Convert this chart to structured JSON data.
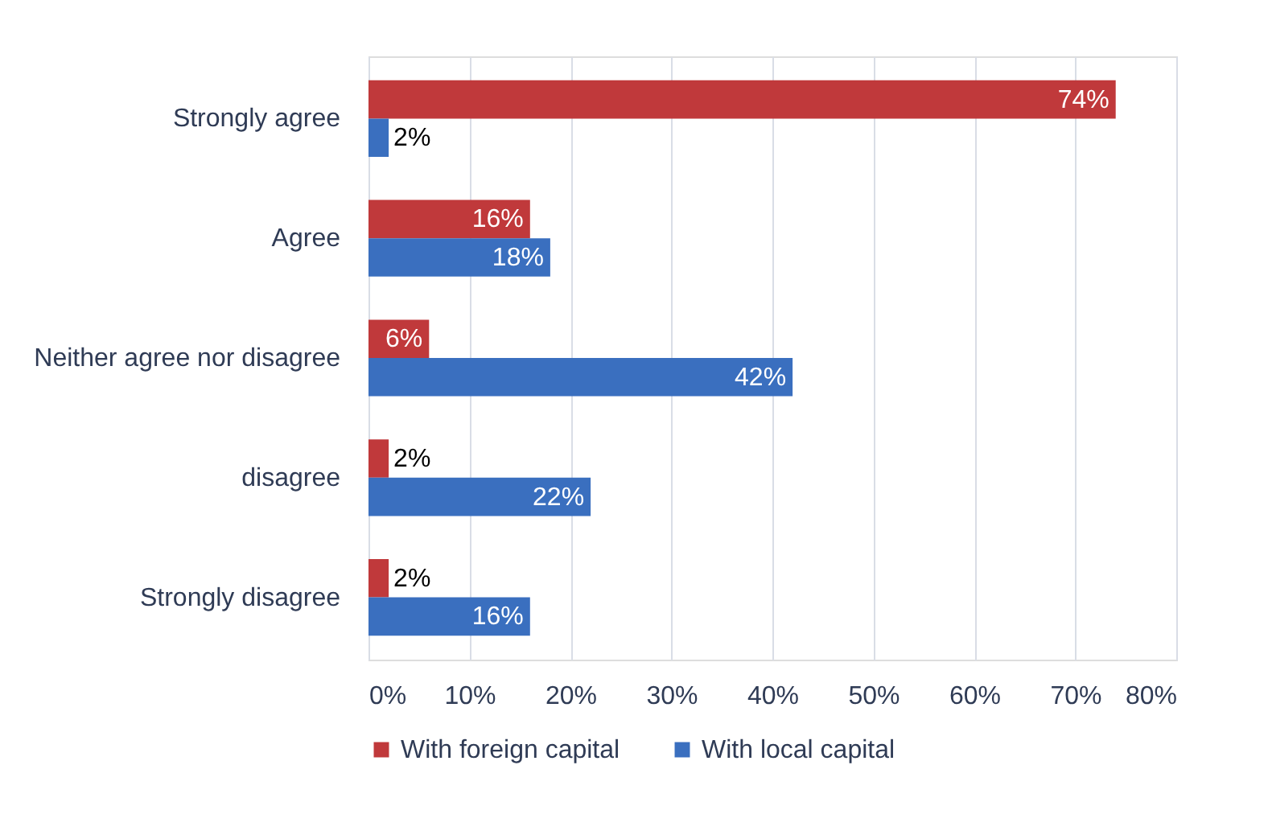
{
  "chart_data": {
    "type": "bar",
    "orientation": "horizontal",
    "categories": [
      "Strongly agree",
      "Agree",
      "Neither agree nor disagree",
      "disagree",
      "Strongly disagree"
    ],
    "series": [
      {
        "name": "With foreign capital",
        "color": "#c0393b",
        "values": [
          74,
          16,
          6,
          2,
          2
        ],
        "value_labels": [
          "74%",
          "16%",
          "6%",
          "2%",
          "2%"
        ]
      },
      {
        "name": "With local capital",
        "color": "#3a6fbf",
        "values": [
          2,
          18,
          42,
          22,
          16
        ],
        "value_labels": [
          "2%",
          "18%",
          "42%",
          "22%",
          "16%"
        ]
      }
    ],
    "xlim": [
      0,
      80
    ],
    "xticks": [
      {
        "value": 0,
        "label": "0%"
      },
      {
        "value": 10,
        "label": "10%"
      },
      {
        "value": 20,
        "label": "20%"
      },
      {
        "value": 30,
        "label": "30%"
      },
      {
        "value": 40,
        "label": "40%"
      },
      {
        "value": 50,
        "label": "50%"
      },
      {
        "value": 60,
        "label": "60%"
      },
      {
        "value": 70,
        "label": "70%"
      },
      {
        "value": 80,
        "label": "80%"
      }
    ],
    "grid": "x",
    "legend": "bottom"
  }
}
